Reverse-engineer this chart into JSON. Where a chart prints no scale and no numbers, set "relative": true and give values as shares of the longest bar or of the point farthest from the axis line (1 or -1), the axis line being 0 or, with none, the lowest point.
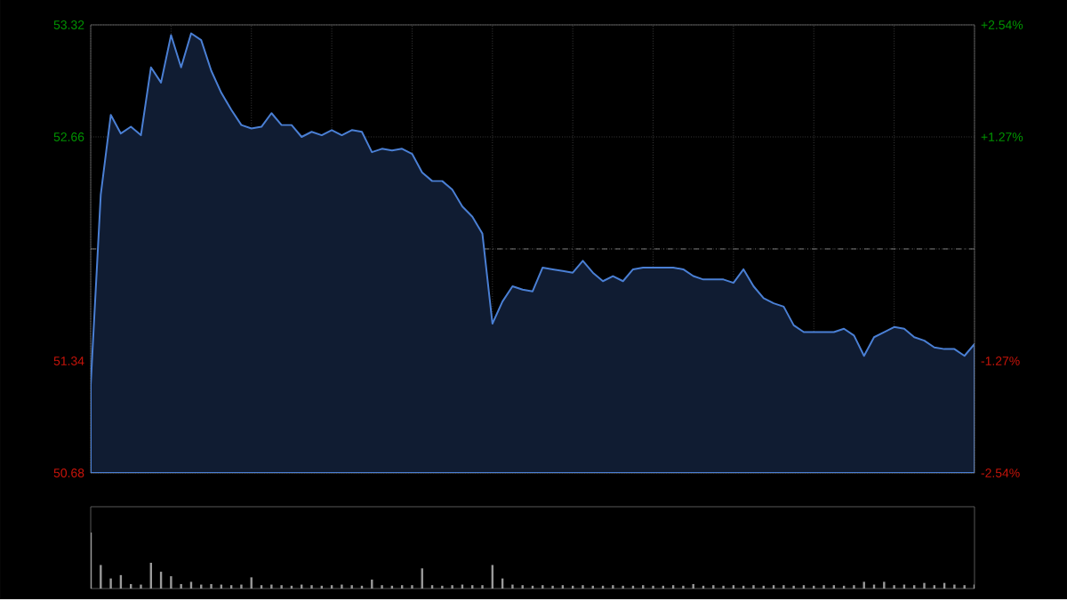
{
  "chart_data": [
    {
      "type": "area",
      "categories": [
        null,
        null,
        null,
        null,
        null,
        null,
        null,
        null,
        null,
        null,
        null,
        null,
        null,
        null,
        null,
        null,
        null,
        null,
        null,
        null,
        null,
        null,
        null,
        null,
        null,
        null,
        null,
        null,
        null,
        null,
        null,
        null,
        null,
        null,
        null,
        null,
        null,
        null,
        null,
        null,
        null,
        null,
        null,
        null,
        null,
        null,
        null,
        null,
        null,
        null,
        null,
        null,
        null,
        null,
        null,
        null,
        null,
        null,
        null,
        null,
        null,
        null,
        null,
        null,
        null,
        null,
        null,
        null,
        null,
        null,
        null,
        null,
        null,
        null,
        null,
        null,
        null,
        null,
        null,
        null,
        null,
        null,
        null,
        null,
        null,
        null,
        null,
        null,
        null
      ],
      "series": [
        {
          "color": "#4a7fd4",
          "values": [
            51.2,
            52.32,
            52.79,
            52.68,
            52.72,
            52.67,
            53.07,
            52.98,
            53.26,
            53.07,
            53.27,
            53.23,
            53.05,
            52.92,
            52.82,
            52.73,
            52.71,
            52.72,
            52.8,
            52.73,
            52.73,
            52.66,
            52.69,
            52.67,
            52.7,
            52.67,
            52.7,
            52.69,
            52.57,
            52.59,
            52.58,
            52.59,
            52.56,
            52.45,
            52.4,
            52.4,
            52.35,
            52.25,
            52.19,
            52.09,
            51.56,
            51.69,
            51.78,
            51.76,
            51.75,
            51.89,
            51.88,
            51.87,
            51.86,
            51.93,
            51.86,
            51.81,
            51.84,
            51.81,
            51.88,
            51.89,
            51.89,
            51.89,
            51.89,
            51.88,
            51.84,
            51.82,
            51.82,
            51.82,
            51.8,
            51.88,
            51.78,
            51.71,
            51.68,
            51.66,
            51.55,
            51.51,
            51.51,
            51.51,
            51.51,
            51.53,
            51.49,
            51.37,
            51.48,
            51.51,
            51.54,
            51.53,
            51.48,
            51.46,
            51.42,
            51.41,
            51.41,
            51.37,
            51.44
          ]
        }
      ],
      "ylim": [
        50.68,
        53.32
      ],
      "yticks": [
        50.68,
        51.34,
        {
          "value": 52.0,
          "label": null
        },
        52.66,
        53.32
      ],
      "y2lim": [
        -2.54,
        2.54
      ],
      "y2ticks": [
        {
          "value": -2.54,
          "label": "-2.54%"
        },
        {
          "value": -1.27,
          "label": "-1.27%"
        },
        {
          "value": 0,
          "label": null
        },
        {
          "value": 1.27,
          "label": "+1.27%"
        },
        {
          "value": 2.54,
          "label": "+2.54%"
        }
      ],
      "ref_lines": [
        {
          "axis": "y",
          "value": 52.0
        }
      ],
      "grid": true
    },
    {
      "type": "bar",
      "relative": true,
      "color": "#9a9a9a",
      "categories": [
        null,
        null,
        null,
        null,
        null,
        null,
        null,
        null,
        null,
        null,
        null,
        null,
        null,
        null,
        null,
        null,
        null,
        null,
        null,
        null,
        null,
        null,
        null,
        null,
        null,
        null,
        null,
        null,
        null,
        null,
        null,
        null,
        null,
        null,
        null,
        null,
        null,
        null,
        null,
        null,
        null,
        null,
        null,
        null,
        null,
        null,
        null,
        null,
        null,
        null,
        null,
        null,
        null,
        null,
        null,
        null,
        null,
        null,
        null,
        null,
        null,
        null,
        null,
        null,
        null,
        null,
        null,
        null,
        null,
        null,
        null,
        null,
        null,
        null,
        null,
        null,
        null,
        null,
        null,
        null,
        null,
        null,
        null,
        null,
        null,
        null,
        null,
        null,
        null
      ],
      "values": [
        1.0,
        0.42,
        0.18,
        0.24,
        0.08,
        0.07,
        0.46,
        0.3,
        0.22,
        0.08,
        0.12,
        0.07,
        0.08,
        0.07,
        0.06,
        0.07,
        0.2,
        0.06,
        0.07,
        0.06,
        0.05,
        0.07,
        0.06,
        0.05,
        0.06,
        0.07,
        0.06,
        0.05,
        0.16,
        0.06,
        0.05,
        0.06,
        0.06,
        0.36,
        0.06,
        0.05,
        0.06,
        0.07,
        0.06,
        0.06,
        0.42,
        0.18,
        0.07,
        0.06,
        0.05,
        0.06,
        0.05,
        0.06,
        0.05,
        0.06,
        0.05,
        0.05,
        0.06,
        0.05,
        0.05,
        0.06,
        0.05,
        0.05,
        0.06,
        0.05,
        0.08,
        0.05,
        0.06,
        0.05,
        0.06,
        0.05,
        0.06,
        0.05,
        0.06,
        0.06,
        0.05,
        0.06,
        0.05,
        0.06,
        0.06,
        0.05,
        0.06,
        0.12,
        0.07,
        0.12,
        0.06,
        0.07,
        0.06,
        0.1,
        0.06,
        0.1,
        0.07,
        0.06,
        0.07
      ]
    }
  ]
}
